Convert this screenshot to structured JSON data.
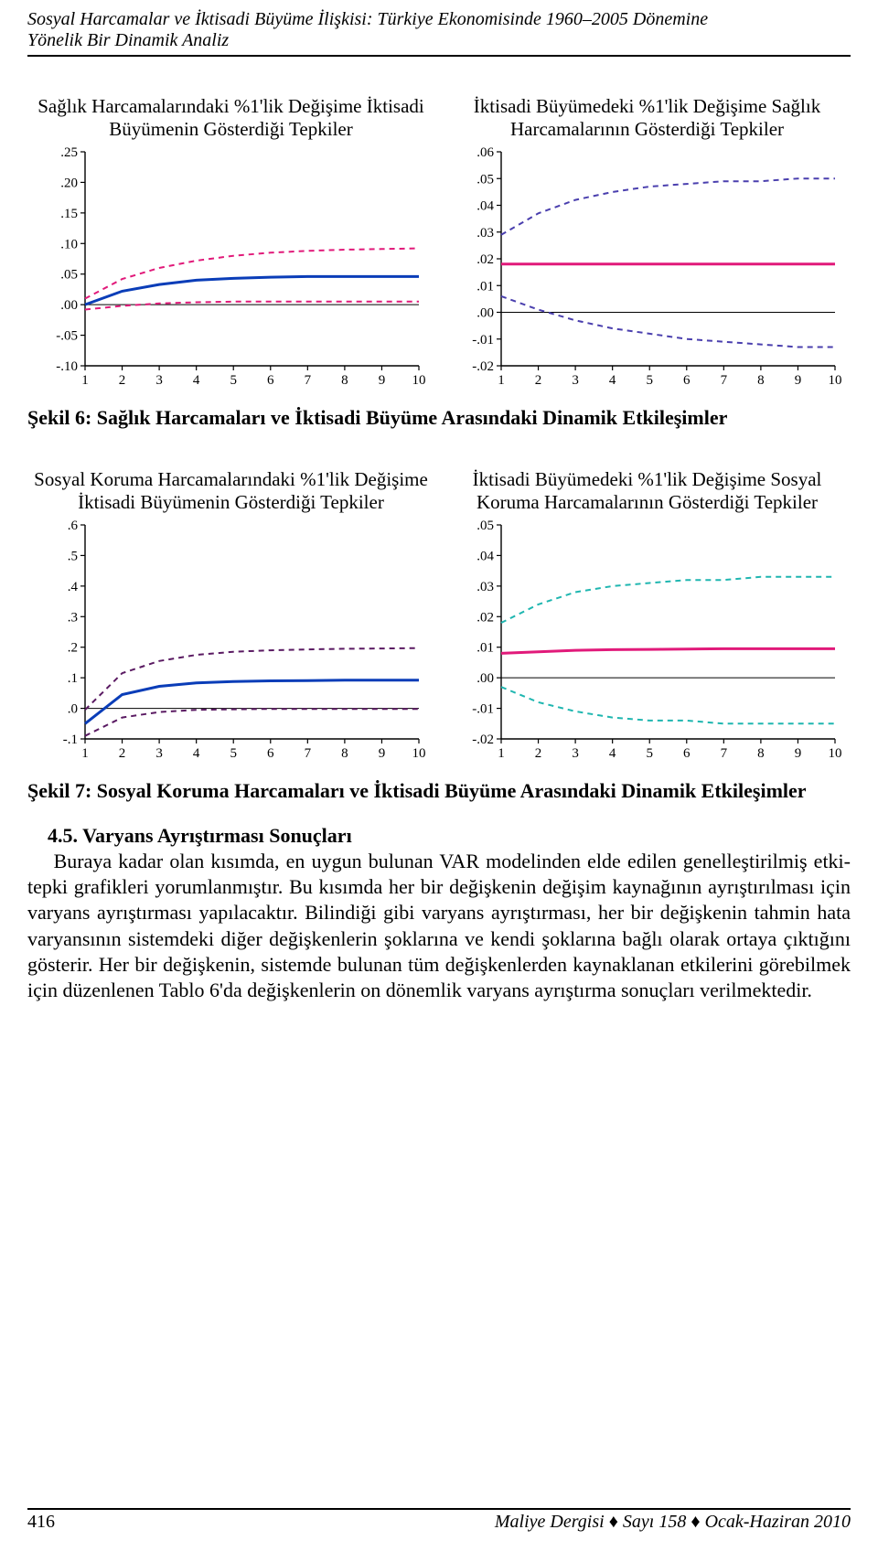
{
  "header": {
    "running_title_line1": "Sosyal Harcamalar ve İktisadi Büyüme İlişkisi: Türkiye Ekonomisinde 1960–2005 Dönemine",
    "running_title_line2": "Yönelik Bir Dinamik Analiz"
  },
  "charts": {
    "axis_color": "#000000",
    "tick_color": "#000000",
    "zero_line_color": "#000000",
    "x_ticks": [
      1,
      2,
      3,
      4,
      5,
      6,
      7,
      8,
      9,
      10
    ],
    "series_style": {
      "solid_line_width": 3,
      "dash_line_width": 2,
      "dash_pattern": "6 5"
    },
    "panels": [
      {
        "id": "health-to-growth",
        "title": "Sağlık Harcamalarındaki %1'lik Değişime İktisadi Büyümenin Gösterdiği Tepkiler",
        "type": "line",
        "ylim": [
          -0.1,
          0.25
        ],
        "y_ticks": [
          ".25",
          ".20",
          ".15",
          ".10",
          ".05",
          ".00",
          "-.05",
          "-.10"
        ],
        "y_values": [
          0.25,
          0.2,
          0.15,
          0.1,
          0.05,
          0.0,
          -0.05,
          -0.1
        ],
        "zero_at": 0.0,
        "series": [
          {
            "color": "#0a3db8",
            "style": "solid",
            "y": [
              0.0,
              0.022,
              0.033,
              0.04,
              0.043,
              0.045,
              0.046,
              0.046,
              0.046,
              0.046
            ]
          },
          {
            "color": "#e11a7a",
            "style": "dash",
            "y": [
              0.01,
              0.042,
              0.06,
              0.072,
              0.08,
              0.085,
              0.088,
              0.09,
              0.091,
              0.092
            ]
          },
          {
            "color": "#e11a7a",
            "style": "dash",
            "y": [
              -0.008,
              -0.002,
              0.002,
              0.004,
              0.005,
              0.005,
              0.005,
              0.005,
              0.005,
              0.005
            ]
          }
        ]
      },
      {
        "id": "growth-to-health",
        "title": "İktisadi Büyümedeki %1'lik Değişime Sağlık Harcamalarının Gösterdiği Tepkiler",
        "type": "line",
        "ylim": [
          -0.02,
          0.06
        ],
        "y_ticks": [
          ".06",
          ".05",
          ".04",
          ".03",
          ".02",
          ".01",
          ".00",
          "-.01",
          "-.02"
        ],
        "y_values": [
          0.06,
          0.05,
          0.04,
          0.03,
          0.02,
          0.01,
          0.0,
          -0.01,
          -0.02
        ],
        "zero_at": 0.0,
        "series": [
          {
            "color": "#e11a7a",
            "style": "solid",
            "y": [
              0.018,
              0.018,
              0.018,
              0.018,
              0.018,
              0.018,
              0.018,
              0.018,
              0.018,
              0.018
            ]
          },
          {
            "color": "#4a3fae",
            "style": "dash",
            "y": [
              0.029,
              0.037,
              0.042,
              0.045,
              0.047,
              0.048,
              0.049,
              0.049,
              0.05,
              0.05
            ]
          },
          {
            "color": "#4a3fae",
            "style": "dash",
            "y": [
              0.006,
              0.001,
              -0.003,
              -0.006,
              -0.008,
              -0.01,
              -0.011,
              -0.012,
              -0.013,
              -0.013
            ]
          }
        ]
      },
      {
        "id": "social-to-growth",
        "title": "Sosyal Koruma Harcamalarındaki %1'lik Değişime İktisadi Büyümenin Gösterdiği Tepkiler",
        "type": "line",
        "ylim": [
          -0.1,
          0.6
        ],
        "y_ticks": [
          ".6",
          ".5",
          ".4",
          ".3",
          ".2",
          ".1",
          ".0",
          "-.1"
        ],
        "y_values": [
          0.6,
          0.5,
          0.4,
          0.3,
          0.2,
          0.1,
          0.0,
          -0.1
        ],
        "zero_at": 0.0,
        "series": [
          {
            "color": "#0a3db8",
            "style": "solid",
            "y": [
              -0.05,
              0.045,
              0.072,
              0.083,
              0.088,
              0.09,
              0.091,
              0.092,
              0.092,
              0.092
            ]
          },
          {
            "color": "#5a1a62",
            "style": "dash",
            "y": [
              -0.005,
              0.115,
              0.155,
              0.175,
              0.185,
              0.19,
              0.193,
              0.195,
              0.196,
              0.197
            ]
          },
          {
            "color": "#5a1a62",
            "style": "dash",
            "y": [
              -0.09,
              -0.03,
              -0.012,
              -0.005,
              -0.003,
              -0.002,
              -0.002,
              -0.002,
              -0.002,
              -0.002
            ]
          }
        ]
      },
      {
        "id": "growth-to-social",
        "title": "İktisadi Büyümedeki %1'lik Değişime Sosyal Koruma Harcamalarının Gösterdiği Tepkiler",
        "type": "line",
        "ylim": [
          -0.02,
          0.05
        ],
        "y_ticks": [
          ".05",
          ".04",
          ".03",
          ".02",
          ".01",
          ".00",
          "-.01",
          "-.02"
        ],
        "y_values": [
          0.05,
          0.04,
          0.03,
          0.02,
          0.01,
          0.0,
          -0.01,
          -0.02
        ],
        "zero_at": 0.0,
        "series": [
          {
            "color": "#e11a7a",
            "style": "solid",
            "y": [
              0.008,
              0.0085,
              0.009,
              0.0092,
              0.0093,
              0.0094,
              0.0095,
              0.0095,
              0.0095,
              0.0095
            ]
          },
          {
            "color": "#1fb6b0",
            "style": "dash",
            "y": [
              0.018,
              0.024,
              0.028,
              0.03,
              0.031,
              0.032,
              0.032,
              0.033,
              0.033,
              0.033
            ]
          },
          {
            "color": "#1fb6b0",
            "style": "dash",
            "y": [
              -0.003,
              -0.008,
              -0.011,
              -0.013,
              -0.014,
              -0.014,
              -0.015,
              -0.015,
              -0.015,
              -0.015
            ]
          }
        ]
      }
    ]
  },
  "captions": {
    "fig6": "Şekil 6: Sağlık Harcamaları ve İktisadi Büyüme Arasındaki Dinamik Etkileşimler",
    "fig7": "Şekil 7: Sosyal Koruma Harcamaları ve İktisadi Büyüme Arasındaki Dinamik Etkileşimler"
  },
  "section": {
    "heading": "4.5. Varyans Ayrıştırması Sonuçları",
    "paragraph": "Buraya kadar olan kısımda, en uygun bulunan VAR modelinden elde edilen genelleştirilmiş etki-tepki grafikleri yorumlanmıştır. Bu kısımda her bir değişkenin değişim kaynağının ayrıştırılması için varyans ayrıştırması yapılacaktır. Bilindiği gibi varyans ayrıştırması, her bir değişkenin tahmin hata varyansının sistemdeki diğer değişkenlerin şoklarına ve kendi şoklarına bağlı olarak ortaya çıktığını gösterir. Her bir değişkenin, sistemde bulunan tüm değişkenlerden kaynaklanan etkilerini görebilmek için düzenlenen Tablo 6'da değişkenlerin on dönemlik varyans ayrıştırma sonuçları verilmektedir."
  },
  "footer": {
    "page_number": "416",
    "journal": "Maliye Dergisi ",
    "issue": " Sayı 158 ",
    "date": " Ocak-Haziran 2010",
    "diamond": "♦"
  }
}
